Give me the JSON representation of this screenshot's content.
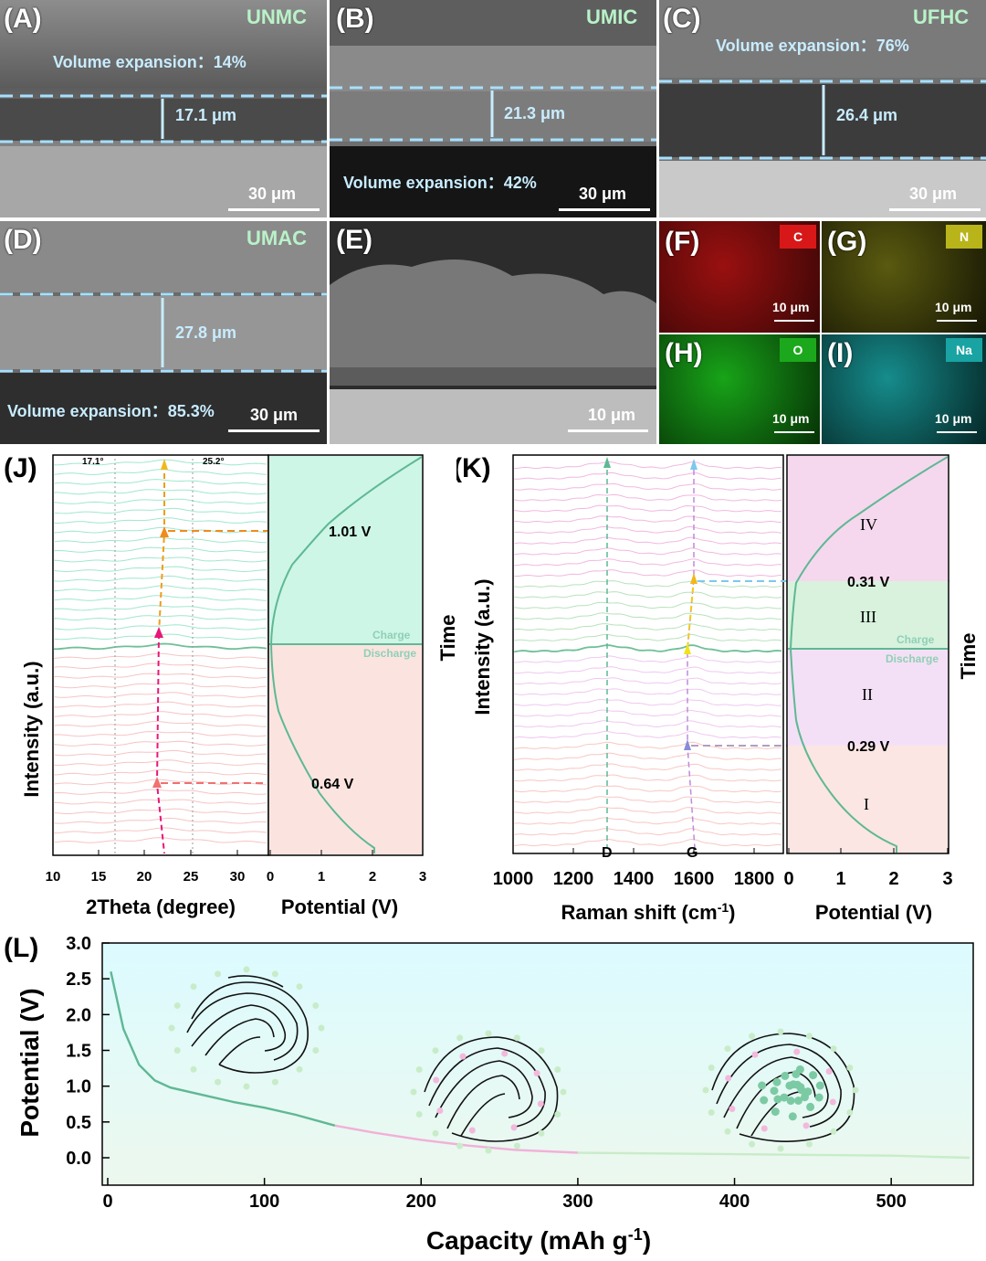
{
  "panels": {
    "A": {
      "label": "(A)",
      "sample": "UNMC",
      "volume": "Volume expansion：14%",
      "thickness": "17.1 μm",
      "scale": "30 μm"
    },
    "B": {
      "label": "(B)",
      "sample": "UMIC",
      "volume": "Volume expansion：42%",
      "thickness": "21.3 μm",
      "scale": "30 μm"
    },
    "C": {
      "label": "(C)",
      "sample": "UFHC",
      "volume": "Volume expansion：76%",
      "thickness": "26.4 μm",
      "scale": "30 μm"
    },
    "D": {
      "label": "(D)",
      "sample": "UMAC",
      "volume": "Volume expansion：85.3%",
      "thickness": "27.8 μm",
      "scale": "30 μm"
    },
    "E": {
      "label": "(E)",
      "scale": "10 μm"
    },
    "F": {
      "label": "(F)",
      "element": "C",
      "scale": "10 μm",
      "color": "#c01818"
    },
    "G": {
      "label": "(G)",
      "element": "N",
      "scale": "10 μm",
      "color": "#b8b41a"
    },
    "H": {
      "label": "(H)",
      "element": "O",
      "scale": "10 μm",
      "color": "#1ca81c"
    },
    "I": {
      "label": "(I)",
      "element": "Na",
      "scale": "10 μm",
      "color": "#19a3a3"
    }
  },
  "panelJ": {
    "label": "(J)",
    "ylabel": "Intensity (a.u.)",
    "xlabel": "2Theta (degree)",
    "xlabel2": "Potential (V)",
    "peak1": "17.1°",
    "peak2": "25.2°",
    "charge": "Charge",
    "discharge": "Discharge",
    "v_high": "1.01 V",
    "v_low": "0.64 V",
    "xticks": [
      "10",
      "15",
      "20",
      "25",
      "30"
    ],
    "vticks": [
      "0",
      "1",
      "2",
      "3"
    ]
  },
  "panelK": {
    "label": "(K)",
    "ylabel": "Intensity (a.u.)",
    "time": "Time",
    "xlabel": "Raman shift (cm-1)",
    "xlabel_main": "Raman shift (cm",
    "xlabel_sup": "-1",
    "xlabel_end": ")",
    "xlabel2": "Potential (V)",
    "D": "D",
    "G": "G",
    "charge": "Charge",
    "discharge": "Discharge",
    "v_high": "0.31 V",
    "v_low": "0.29 V",
    "regions": [
      "IV",
      "III",
      "II",
      "I"
    ],
    "xticks": [
      "1000",
      "1200",
      "1400",
      "1600",
      "1800"
    ],
    "vticks": [
      "0",
      "1",
      "2",
      "3"
    ]
  },
  "panelJ_time": "Time",
  "panelL": {
    "label": "(L)",
    "ylabel": "Potential (V)",
    "xlabel_main": "Capacity (mAh g",
    "xlabel_sup": "-1",
    "xlabel_end": ")",
    "yticks": [
      "0.0",
      "0.5",
      "1.0",
      "1.5",
      "2.0",
      "2.5",
      "3.0"
    ],
    "xticks": [
      "0",
      "100",
      "200",
      "300",
      "400",
      "500"
    ]
  },
  "chart_data": {
    "type": "line",
    "x": [
      2,
      10,
      20,
      30,
      40,
      60,
      80,
      100,
      120,
      145,
      170,
      200,
      230,
      260,
      300,
      350,
      400,
      450,
      500,
      550
    ],
    "y": [
      2.6,
      1.8,
      1.3,
      1.08,
      0.98,
      0.88,
      0.78,
      0.7,
      0.6,
      0.45,
      0.35,
      0.25,
      0.17,
      0.11,
      0.07,
      0.06,
      0.05,
      0.04,
      0.03,
      0.0
    ],
    "xlabel": "Capacity (mAh g-1)",
    "ylabel": "Potential (V)",
    "xlim": [
      0,
      550
    ],
    "ylim": [
      0,
      3.0
    ]
  }
}
